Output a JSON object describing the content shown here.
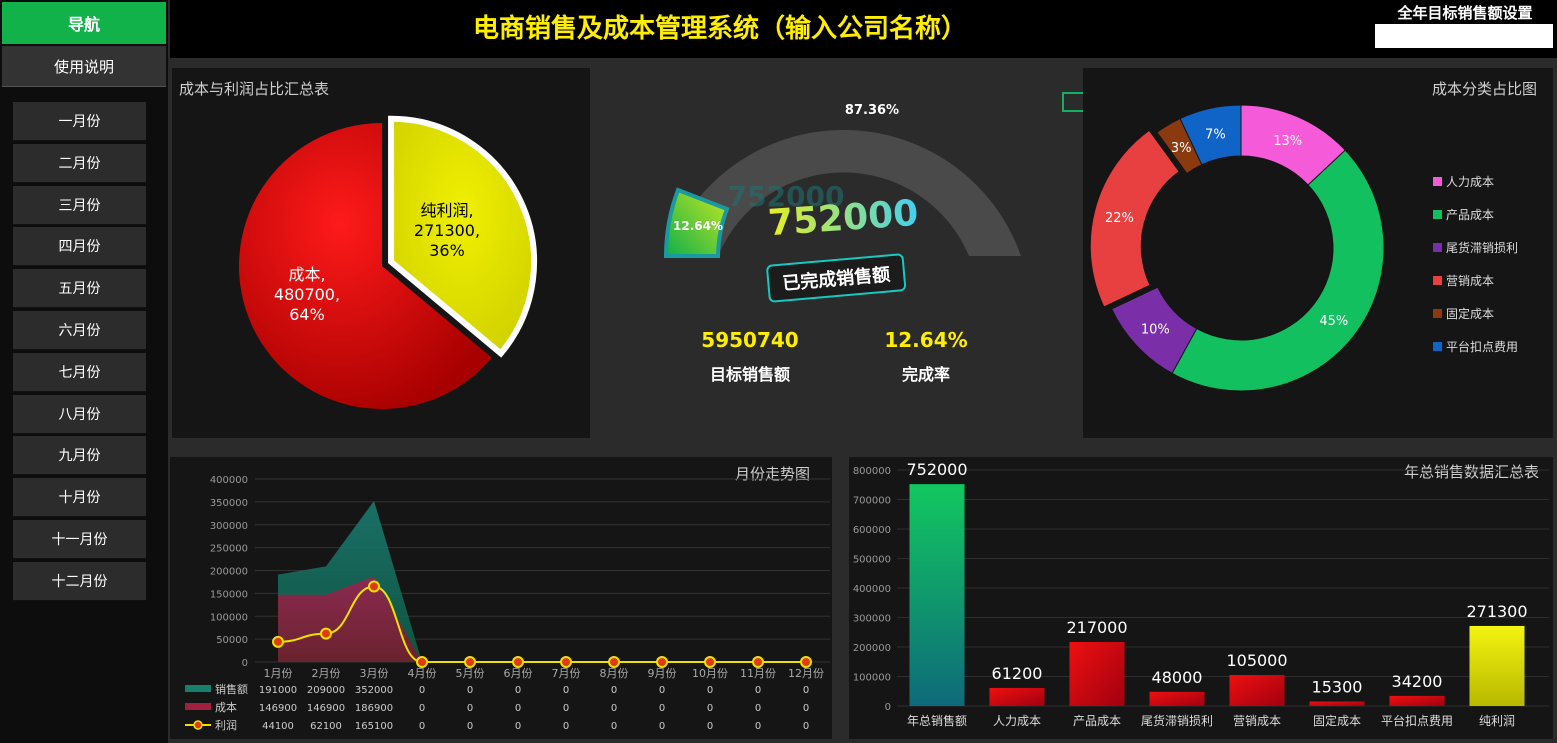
{
  "sidebar": {
    "title": "导航",
    "usage": "使用说明",
    "months": [
      "一月份",
      "二月份",
      "三月份",
      "四月份",
      "五月份",
      "六月份",
      "七月份",
      "八月份",
      "九月份",
      "十月份",
      "十一月份",
      "十二月份"
    ]
  },
  "header": {
    "title": "电商销售及成本管理系统（输入公司名称）",
    "target_label": "全年目标销售额设置",
    "target_value": ""
  },
  "pie_panel": {
    "title": "成本与利润占比汇总表",
    "cost_label": "成本,",
    "cost_value": "480700,",
    "cost_pct": "64%",
    "profit_label": "纯利润,",
    "profit_value": "271300,",
    "profit_pct": "36%"
  },
  "gauge_panel": {
    "remaining_pct": "87.36%",
    "done_pct": "12.64%",
    "sales_value": "752000",
    "sales_caption": "已完成销售额",
    "target_value": "5950740",
    "target_caption": "目标销售额",
    "rate_value": "12.64%",
    "rate_caption": "完成率"
  },
  "donut_panel": {
    "title": "成本分类占比图",
    "legend": [
      "人力成本",
      "产品成本",
      "尾货滞销损利",
      "营销成本",
      "固定成本",
      "平台扣点费用"
    ],
    "colors": [
      "#f55ad8",
      "#12c060",
      "#7a2fa8",
      "#e84040",
      "#8b3a10",
      "#1064c8"
    ],
    "labels": [
      "13%",
      "45%",
      "10%",
      "22%",
      "3%",
      "7%"
    ]
  },
  "trend_panel": {
    "title": "月份走势图",
    "legend_sales": "销售额",
    "legend_cost": "成本",
    "legend_profit": "利润"
  },
  "summary_panel": {
    "title": "年总销售数据汇总表"
  },
  "chart_data": [
    {
      "type": "pie",
      "title": "成本与利润占比汇总表",
      "labels": [
        "成本",
        "纯利润"
      ],
      "values": [
        480700,
        271300
      ],
      "percents": [
        64,
        36
      ],
      "colors": [
        "#d10000",
        "#e6e600"
      ]
    },
    {
      "type": "pie",
      "title": "成本分类占比图",
      "labels": [
        "人力成本",
        "产品成本",
        "尾货滞销损利",
        "营销成本",
        "固定成本",
        "平台扣点费用"
      ],
      "percents": [
        13,
        45,
        10,
        22,
        3,
        7
      ],
      "legend": "right"
    },
    {
      "type": "area",
      "title": "月份走势图",
      "categories": [
        "1月份",
        "2月份",
        "3月份",
        "4月份",
        "5月份",
        "6月份",
        "7月份",
        "8月份",
        "9月份",
        "10月份",
        "11月份",
        "12月份"
      ],
      "series": [
        {
          "name": "销售额",
          "values": [
            191000,
            209000,
            352000,
            0,
            0,
            0,
            0,
            0,
            0,
            0,
            0,
            0
          ]
        },
        {
          "name": "成本",
          "values": [
            146900,
            146900,
            186900,
            0,
            0,
            0,
            0,
            0,
            0,
            0,
            0,
            0
          ]
        },
        {
          "name": "利润",
          "values": [
            44100,
            62100,
            165100,
            0,
            0,
            0,
            0,
            0,
            0,
            0,
            0,
            0
          ]
        }
      ],
      "ylim": [
        0,
        400000
      ],
      "yticks": [
        0,
        50000,
        100000,
        150000,
        200000,
        250000,
        300000,
        350000,
        400000
      ],
      "grid": true
    },
    {
      "type": "bar",
      "title": "年总销售数据汇总表",
      "categories": [
        "年总销售额",
        "人力成本",
        "产品成本",
        "尾货滞销损利",
        "营销成本",
        "固定成本",
        "平台扣点费用",
        "纯利润"
      ],
      "values": [
        752000,
        61200,
        217000,
        48000,
        105000,
        15300,
        34200,
        271300
      ],
      "ylim": [
        0,
        800000
      ],
      "yticks": [
        0,
        100000,
        200000,
        300000,
        400000,
        500000,
        600000,
        700000,
        800000
      ],
      "grid": true
    }
  ]
}
